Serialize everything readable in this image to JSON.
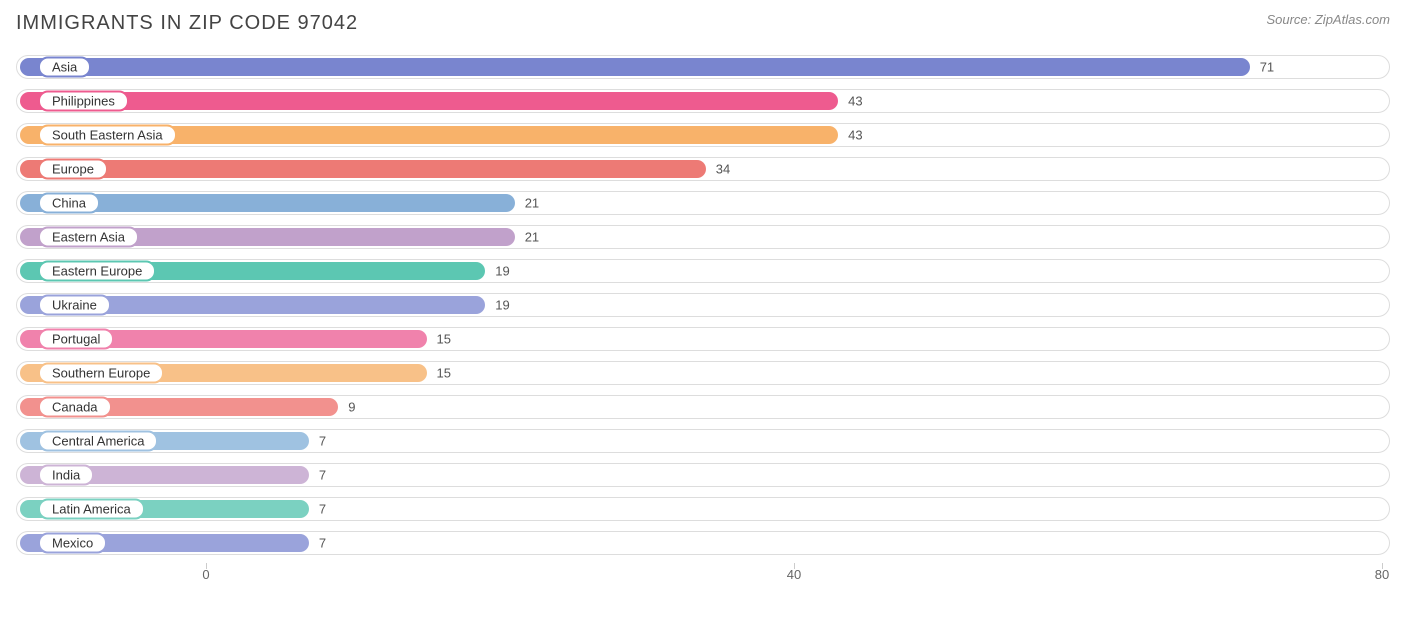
{
  "header": {
    "title": "IMMIGRANTS IN ZIP CODE 97042",
    "source": "Source: ZipAtlas.com"
  },
  "chart": {
    "type": "bar",
    "orientation": "horizontal",
    "max_value": 80,
    "bar_track_border_color": "#dddddd",
    "bar_track_bg": "#ffffff",
    "label_fontsize": 13,
    "value_fontsize": 13,
    "value_color": "#555555",
    "bars": [
      {
        "label": "Asia",
        "value": 71,
        "color": "#7985cf"
      },
      {
        "label": "Philippines",
        "value": 43,
        "color": "#ee5b8f"
      },
      {
        "label": "South Eastern Asia",
        "value": 43,
        "color": "#f8b26a"
      },
      {
        "label": "Europe",
        "value": 34,
        "color": "#ed7a75"
      },
      {
        "label": "China",
        "value": 21,
        "color": "#88b0d8"
      },
      {
        "label": "Eastern Asia",
        "value": 21,
        "color": "#c1a1cb"
      },
      {
        "label": "Eastern Europe",
        "value": 19,
        "color": "#5cc7b2"
      },
      {
        "label": "Ukraine",
        "value": 19,
        "color": "#9aa3db"
      },
      {
        "label": "Portugal",
        "value": 15,
        "color": "#f082ac"
      },
      {
        "label": "Southern Europe",
        "value": 15,
        "color": "#f8c188"
      },
      {
        "label": "Canada",
        "value": 9,
        "color": "#f2918e"
      },
      {
        "label": "Central America",
        "value": 7,
        "color": "#9fc2e1"
      },
      {
        "label": "India",
        "value": 7,
        "color": "#cdb4d6"
      },
      {
        "label": "Latin America",
        "value": 7,
        "color": "#7bd1c1"
      },
      {
        "label": "Mexico",
        "value": 7,
        "color": "#9aa3db"
      }
    ],
    "axis": {
      "ticks": [
        0,
        40,
        80
      ],
      "color": "#666666",
      "fontsize": 13
    }
  }
}
